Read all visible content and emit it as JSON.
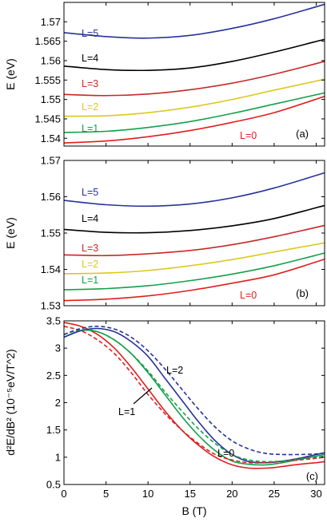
{
  "colors": {
    "L0": "#e01e1e",
    "L1": "#14a04a",
    "L2": "#dcc81e",
    "L3": "#c82828",
    "L4": "#000000",
    "L5": "#28329a"
  },
  "chart_data": [
    {
      "type": "line",
      "panel_label": "(a)",
      "ylabel": "E (eV)",
      "xlim": [
        0,
        31
      ],
      "ylim": [
        1.538,
        1.575
      ],
      "xticks": [],
      "yticks": [
        "1.54",
        "1.545",
        "1.55",
        "1.555",
        "1.56",
        "1.565",
        "1.57"
      ],
      "series": [
        {
          "name": "L=5",
          "x": [
            0,
            5,
            10,
            15,
            20,
            25,
            31
          ],
          "values": [
            1.5672,
            1.5662,
            1.5658,
            1.5665,
            1.5683,
            1.5708,
            1.5745
          ]
        },
        {
          "name": "L=4",
          "x": [
            0,
            5,
            10,
            15,
            20,
            25,
            31
          ],
          "values": [
            1.5586,
            1.5577,
            1.5575,
            1.5581,
            1.5598,
            1.5622,
            1.5655
          ]
        },
        {
          "name": "L=3",
          "x": [
            0,
            5,
            10,
            15,
            20,
            25,
            31
          ],
          "values": [
            1.5513,
            1.551,
            1.5514,
            1.5525,
            1.5542,
            1.5565,
            1.5598
          ]
        },
        {
          "name": "L=2",
          "x": [
            0,
            5,
            10,
            15,
            20,
            25,
            31
          ],
          "values": [
            1.5457,
            1.5458,
            1.5466,
            1.548,
            1.55,
            1.5524,
            1.5552
          ]
        },
        {
          "name": "L=1",
          "x": [
            0,
            5,
            10,
            15,
            20,
            25,
            31
          ],
          "values": [
            1.5415,
            1.5418,
            1.5428,
            1.5443,
            1.5464,
            1.5488,
            1.5517
          ]
        },
        {
          "name": "L=0",
          "x": [
            0,
            5,
            10,
            15,
            20,
            25,
            31
          ],
          "values": [
            1.5388,
            1.5393,
            1.5404,
            1.542,
            1.5441,
            1.5466,
            1.5508
          ]
        }
      ]
    },
    {
      "type": "line",
      "panel_label": "(b)",
      "ylabel": "E (eV)",
      "xlim": [
        0,
        31
      ],
      "ylim": [
        1.53,
        1.57
      ],
      "xticks": [],
      "yticks": [
        "1.53",
        "1.54",
        "1.55",
        "1.56",
        "1.57"
      ],
      "series": [
        {
          "name": "L=5",
          "x": [
            0,
            5,
            10,
            15,
            20,
            25,
            31
          ],
          "values": [
            1.559,
            1.5578,
            1.5574,
            1.558,
            1.5597,
            1.5624,
            1.5666
          ]
        },
        {
          "name": "L=4",
          "x": [
            0,
            5,
            10,
            15,
            20,
            25,
            31
          ],
          "values": [
            1.551,
            1.5502,
            1.5501,
            1.5507,
            1.552,
            1.554,
            1.5576
          ]
        },
        {
          "name": "L=3",
          "x": [
            0,
            5,
            10,
            15,
            20,
            25,
            31
          ],
          "values": [
            1.544,
            1.5438,
            1.5443,
            1.5452,
            1.5468,
            1.549,
            1.5521
          ]
        },
        {
          "name": "L=2",
          "x": [
            0,
            5,
            10,
            15,
            20,
            25,
            31
          ],
          "values": [
            1.5388,
            1.539,
            1.5397,
            1.541,
            1.5427,
            1.5448,
            1.5473
          ]
        },
        {
          "name": "L=1",
          "x": [
            0,
            5,
            10,
            15,
            20,
            25,
            31
          ],
          "values": [
            1.5344,
            1.5347,
            1.5355,
            1.5369,
            1.5387,
            1.541,
            1.5445
          ]
        },
        {
          "name": "L=0",
          "x": [
            0,
            5,
            10,
            15,
            20,
            25,
            31
          ],
          "values": [
            1.5314,
            1.5318,
            1.5327,
            1.5342,
            1.5362,
            1.5385,
            1.5428
          ]
        }
      ]
    },
    {
      "type": "line",
      "panel_label": "(c)",
      "ylabel": "d²E/dB² (10⁻⁵eV/T^2)",
      "xlabel": "B (T)",
      "xlim": [
        0,
        31
      ],
      "ylim": [
        0.5,
        3.5
      ],
      "xticks": [
        "0",
        "5",
        "10",
        "15",
        "20",
        "25",
        "30"
      ],
      "yticks": [
        "0.5",
        "1",
        "1.5",
        "2",
        "2.5",
        "3",
        "3.5"
      ],
      "series": [
        {
          "name": "L=0",
          "style": "solid",
          "x": [
            0,
            2,
            4,
            6,
            8,
            10,
            12,
            14,
            16,
            18,
            20,
            22,
            24,
            25,
            26,
            28,
            30,
            31
          ],
          "values": [
            3.47,
            3.4,
            3.25,
            3.0,
            2.65,
            2.25,
            1.85,
            1.5,
            1.22,
            1.0,
            0.86,
            0.8,
            0.8,
            0.81,
            0.83,
            0.87,
            0.9,
            0.92
          ]
        },
        {
          "name": "L=1",
          "style": "solid",
          "x": [
            0,
            2,
            4,
            6,
            8,
            10,
            12,
            14,
            16,
            18,
            20,
            22,
            24,
            26,
            28,
            30,
            31
          ],
          "values": [
            3.2,
            3.32,
            3.3,
            3.15,
            2.9,
            2.55,
            2.15,
            1.75,
            1.4,
            1.12,
            0.93,
            0.87,
            0.86,
            0.9,
            0.96,
            1.02,
            1.05
          ]
        },
        {
          "name": "L=2",
          "style": "solid",
          "x": [
            0,
            2,
            4,
            6,
            8,
            10,
            12,
            14,
            16,
            18,
            20,
            22,
            24,
            26,
            28,
            30,
            31
          ],
          "values": [
            3.2,
            3.32,
            3.36,
            3.3,
            3.12,
            2.85,
            2.45,
            2.05,
            1.65,
            1.3,
            1.05,
            0.92,
            0.9,
            0.93,
            0.98,
            1.05,
            1.08
          ]
        },
        {
          "name": "L=0 (dashed)",
          "style": "dashed",
          "x": [
            0,
            2,
            4,
            6,
            8,
            10,
            12,
            14,
            16,
            18,
            20,
            22,
            24,
            26,
            28,
            30,
            31
          ],
          "values": [
            3.4,
            3.32,
            3.15,
            2.9,
            2.55,
            2.15,
            1.8,
            1.5,
            1.25,
            1.05,
            0.95,
            0.9,
            0.9,
            0.92,
            0.95,
            0.98,
            1.0
          ]
        },
        {
          "name": "L=1 (dashed)",
          "style": "dashed",
          "x": [
            0,
            2,
            4,
            6,
            8,
            10,
            12,
            14,
            16,
            18,
            20,
            22,
            24,
            26,
            28,
            30,
            31
          ],
          "values": [
            3.25,
            3.34,
            3.3,
            3.15,
            2.9,
            2.58,
            2.2,
            1.85,
            1.52,
            1.25,
            1.05,
            0.95,
            0.92,
            0.93,
            0.97,
            1.0,
            1.02
          ]
        },
        {
          "name": "L=2 (dashed)",
          "style": "dashed",
          "x": [
            0,
            2,
            4,
            6,
            8,
            10,
            12,
            14,
            16,
            18,
            20,
            22,
            24,
            26,
            28,
            30,
            31
          ],
          "values": [
            3.25,
            3.36,
            3.4,
            3.35,
            3.2,
            2.95,
            2.62,
            2.25,
            1.88,
            1.55,
            1.3,
            1.15,
            1.07,
            1.05,
            1.05,
            1.06,
            1.08
          ]
        }
      ]
    }
  ],
  "annotations": {
    "a": [
      {
        "text": "L=5",
        "color": "L5"
      },
      {
        "text": "L=4",
        "color": "L4"
      },
      {
        "text": "L=3",
        "color": "L3"
      },
      {
        "text": "L=2",
        "color": "L2"
      },
      {
        "text": "L=1",
        "color": "L1"
      },
      {
        "text": "L=0",
        "color": "L0"
      }
    ],
    "b": [
      {
        "text": "L=5",
        "color": "L5"
      },
      {
        "text": "L=4",
        "color": "L4"
      },
      {
        "text": "L=3",
        "color": "L3"
      },
      {
        "text": "L=2",
        "color": "L2"
      },
      {
        "text": "L=1",
        "color": "L1"
      },
      {
        "text": "L=0",
        "color": "L0"
      }
    ],
    "c": [
      {
        "text": "L=2"
      },
      {
        "text": "L=1"
      },
      {
        "text": "L=0"
      }
    ]
  }
}
